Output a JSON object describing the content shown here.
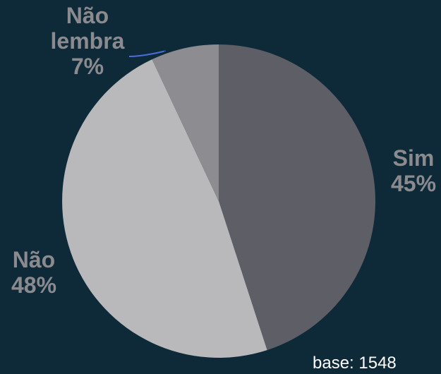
{
  "chart_data": {
    "type": "pie",
    "slices": [
      {
        "label": "Sim",
        "value": 45,
        "value_label": "45%",
        "color": "#5e5e66"
      },
      {
        "label": "Não",
        "value": 48,
        "value_label": "48%",
        "color": "#b9b9bb"
      },
      {
        "label": "Não lembra",
        "value": 7,
        "value_label": "7%",
        "color": "#8d8d91"
      }
    ],
    "label_lines": [
      "Não",
      "lembra"
    ],
    "label_color": "#8a8a8f",
    "leader_line_color": "#4a6fd8",
    "base_note": "base: 1548"
  }
}
